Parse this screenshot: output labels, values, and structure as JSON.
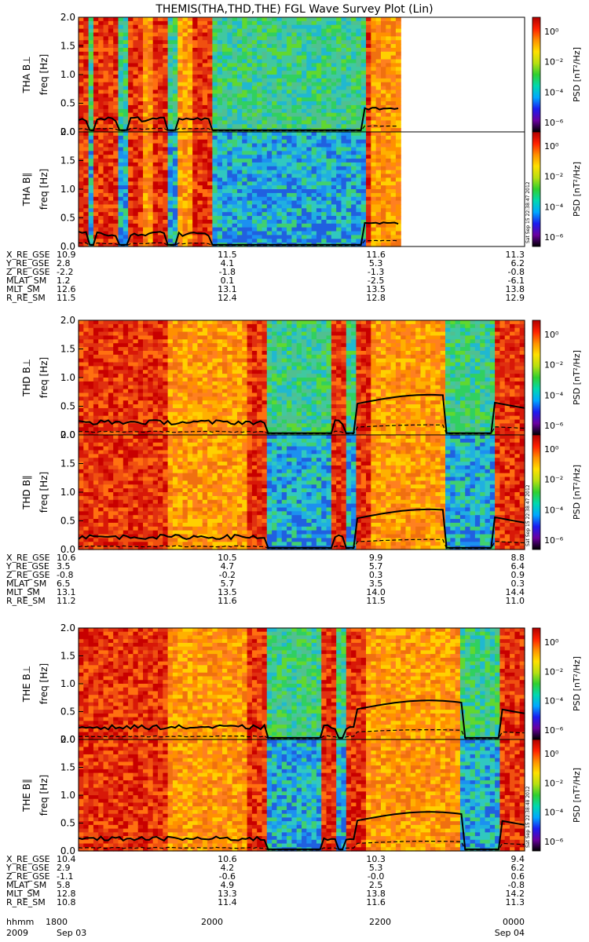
{
  "title": "THEMIS(THA,THD,THE) FGL Wave Survey Plot (Lin)",
  "colorbar": {
    "label": "PSD [nT²/Hz]",
    "ticks": [
      "10⁰",
      "10⁻²",
      "10⁻⁴",
      "10⁻⁶"
    ],
    "colors": [
      "#000000",
      "#6a00a0",
      "#1c1cf0",
      "#00a8ff",
      "#00d8b0",
      "#30d030",
      "#b8e010",
      "#ffe000",
      "#ff9000",
      "#ff2000",
      "#b00000"
    ]
  },
  "stamps": [
    "Sat Sep 15 22:38:47 2012",
    "Sat Sep 15 22:38:47 2012",
    "Sat Sep 15 22:38:48 2012"
  ],
  "time_axis": {
    "hhmm_label": "hhmm",
    "ticks": [
      "1800",
      "2000",
      "2200",
      "0000"
    ],
    "year": "2009",
    "date_start": "Sep 03",
    "date_end": "Sep 04"
  },
  "chart_data": [
    {
      "type": "heatmap",
      "probe": "THA",
      "panels": [
        {
          "ylabel": "THA B⊥",
          "unit": "freq [Hz]",
          "yticks": [
            "0.0",
            "0.5",
            "1.0",
            "1.5",
            "2.0"
          ],
          "ylim": [
            0,
            2.0
          ]
        },
        {
          "ylabel": "THA B∥",
          "unit": "freq [Hz]",
          "yticks": [
            "0.0",
            "0.5",
            "1.0",
            "1.5",
            "2.0"
          ],
          "ylim": [
            0,
            2.0
          ]
        }
      ],
      "regimes": [
        {
          "t": [
            0.0,
            0.02
          ],
          "level": "hi"
        },
        {
          "t": [
            0.02,
            0.035
          ],
          "level": "low"
        },
        {
          "t": [
            0.035,
            0.09
          ],
          "level": "hi"
        },
        {
          "t": [
            0.09,
            0.11
          ],
          "level": "low"
        },
        {
          "t": [
            0.11,
            0.15
          ],
          "level": "hi"
        },
        {
          "t": [
            0.15,
            0.17
          ],
          "level": "mid"
        },
        {
          "t": [
            0.17,
            0.2
          ],
          "level": "hi"
        },
        {
          "t": [
            0.2,
            0.22
          ],
          "level": "low"
        },
        {
          "t": [
            0.22,
            0.26
          ],
          "level": "mid"
        },
        {
          "t": [
            0.26,
            0.3
          ],
          "level": "hi"
        },
        {
          "t": [
            0.3,
            0.64
          ],
          "level": "low"
        },
        {
          "t": [
            0.64,
            0.66
          ],
          "level": "hi"
        },
        {
          "t": [
            0.66,
            0.72
          ],
          "level": "mid"
        }
      ],
      "data_end": 0.72,
      "ephemeris": [
        {
          "label": "X_RE_GSE",
          "values": [
            "10.9",
            "11.5",
            "11.6",
            "11.3"
          ]
        },
        {
          "label": "Y_RE_GSE",
          "values": [
            "2.8",
            "4.1",
            "5.3",
            "6.2"
          ]
        },
        {
          "label": "Z_RE_GSE",
          "values": [
            "-2.2",
            "-1.8",
            "-1.3",
            "-0.8"
          ]
        },
        {
          "label": "MLAT_SM",
          "values": [
            "1.2",
            "0.1",
            "-2.5",
            "-6.1"
          ]
        },
        {
          "label": "MLT_SM",
          "values": [
            "12.6",
            "13.1",
            "13.5",
            "13.8"
          ]
        },
        {
          "label": "R_RE_SM",
          "values": [
            "11.5",
            "12.4",
            "12.8",
            "12.9"
          ]
        }
      ]
    },
    {
      "type": "heatmap",
      "probe": "THD",
      "panels": [
        {
          "ylabel": "THD B⊥",
          "unit": "freq [Hz]",
          "yticks": [
            "0.0",
            "0.5",
            "1.0",
            "1.5",
            "2.0"
          ],
          "ylim": [
            0,
            2.0
          ]
        },
        {
          "ylabel": "THD B∥",
          "unit": "freq [Hz]",
          "yticks": [
            "0.0",
            "0.5",
            "1.0",
            "1.5",
            "2.0"
          ],
          "ylim": [
            0,
            2.0
          ]
        }
      ],
      "regimes": [
        {
          "t": [
            0.0,
            0.05
          ],
          "level": "hi"
        },
        {
          "t": [
            0.05,
            0.2
          ],
          "level": "hi"
        },
        {
          "t": [
            0.2,
            0.38
          ],
          "level": "mid"
        },
        {
          "t": [
            0.38,
            0.42
          ],
          "level": "hi"
        },
        {
          "t": [
            0.42,
            0.57
          ],
          "level": "low"
        },
        {
          "t": [
            0.57,
            0.6
          ],
          "level": "hi"
        },
        {
          "t": [
            0.6,
            0.62
          ],
          "level": "low"
        },
        {
          "t": [
            0.62,
            0.66
          ],
          "level": "hi"
        },
        {
          "t": [
            0.66,
            0.82
          ],
          "level": "mid"
        },
        {
          "t": [
            0.82,
            0.93
          ],
          "level": "low"
        },
        {
          "t": [
            0.93,
            1.0
          ],
          "level": "hi"
        }
      ],
      "data_end": 1.0,
      "ephemeris": [
        {
          "label": "X_RE_GSE",
          "values": [
            "10.6",
            "10.5",
            "9.9",
            "8.8"
          ]
        },
        {
          "label": "Y_RE_GSE",
          "values": [
            "3.5",
            "4.7",
            "5.7",
            "6.4"
          ]
        },
        {
          "label": "Z_RE_GSE",
          "values": [
            "-0.8",
            "-0.2",
            "0.3",
            "0.9"
          ]
        },
        {
          "label": "MLAT_SM",
          "values": [
            "6.5",
            "5.7",
            "3.5",
            "0.3"
          ]
        },
        {
          "label": "MLT_SM",
          "values": [
            "13.1",
            "13.5",
            "14.0",
            "14.4"
          ]
        },
        {
          "label": "R_RE_SM",
          "values": [
            "11.2",
            "11.6",
            "11.5",
            "11.0"
          ]
        }
      ]
    },
    {
      "type": "heatmap",
      "probe": "THE",
      "panels": [
        {
          "ylabel": "THE B⊥",
          "unit": "freq [Hz]",
          "yticks": [
            "0.0",
            "0.5",
            "1.0",
            "1.5",
            "2.0"
          ],
          "ylim": [
            0,
            2.0
          ]
        },
        {
          "ylabel": "THE B∥",
          "unit": "freq [Hz]",
          "yticks": [
            "0.0",
            "0.5",
            "1.0",
            "1.5",
            "2.0"
          ],
          "ylim": [
            0,
            2.0
          ]
        }
      ],
      "regimes": [
        {
          "t": [
            0.0,
            0.05
          ],
          "level": "hi"
        },
        {
          "t": [
            0.05,
            0.2
          ],
          "level": "hi"
        },
        {
          "t": [
            0.2,
            0.38
          ],
          "level": "mid"
        },
        {
          "t": [
            0.38,
            0.42
          ],
          "level": "hi"
        },
        {
          "t": [
            0.42,
            0.55
          ],
          "level": "low"
        },
        {
          "t": [
            0.55,
            0.58
          ],
          "level": "hi"
        },
        {
          "t": [
            0.58,
            0.6
          ],
          "level": "low"
        },
        {
          "t": [
            0.6,
            0.64
          ],
          "level": "hi"
        },
        {
          "t": [
            0.64,
            0.86
          ],
          "level": "mid"
        },
        {
          "t": [
            0.86,
            0.95
          ],
          "level": "low"
        },
        {
          "t": [
            0.95,
            1.0
          ],
          "level": "hi"
        }
      ],
      "data_end": 1.0,
      "ephemeris": [
        {
          "label": "X_RE_GSE",
          "values": [
            "10.4",
            "10.6",
            "10.3",
            "9.4"
          ]
        },
        {
          "label": "Y_RE_GSE",
          "values": [
            "2.9",
            "4.2",
            "5.3",
            "6.2"
          ]
        },
        {
          "label": "Z_RE_GSE",
          "values": [
            "-1.1",
            "-0.6",
            "-0.0",
            "0.6"
          ]
        },
        {
          "label": "MLAT_SM",
          "values": [
            "5.8",
            "4.9",
            "2.5",
            "-0.8"
          ]
        },
        {
          "label": "MLT_SM",
          "values": [
            "12.8",
            "13.3",
            "13.8",
            "14.2"
          ]
        },
        {
          "label": "R_RE_SM",
          "values": [
            "10.8",
            "11.4",
            "11.6",
            "11.3"
          ]
        }
      ]
    }
  ]
}
